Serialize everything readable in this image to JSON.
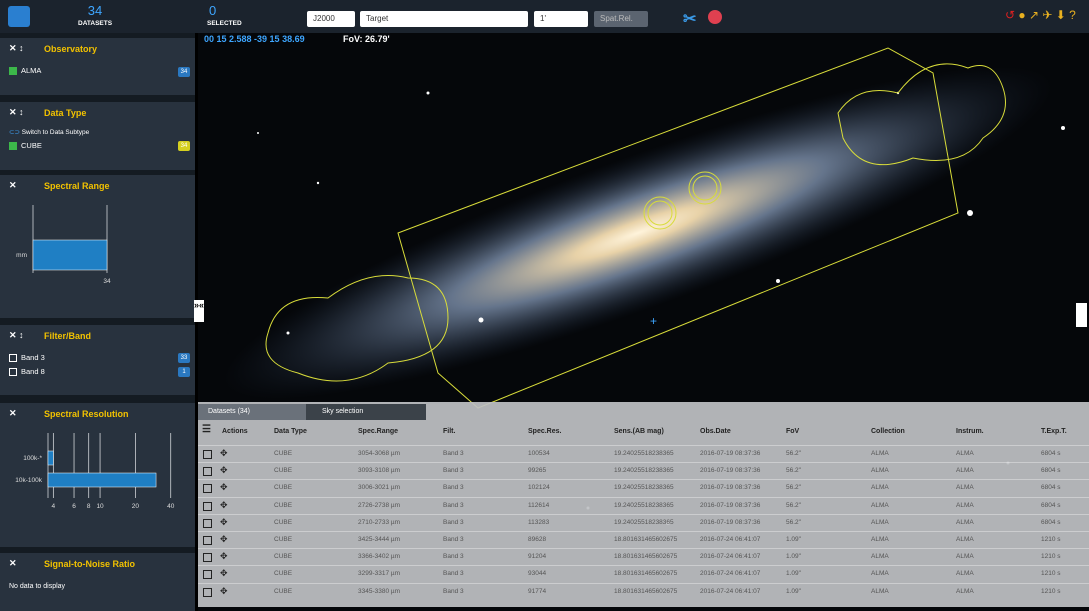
{
  "header": {
    "datasets_count": "34",
    "datasets_label": "DATASETS",
    "selected_count": "0",
    "selected_label": "SELECTED",
    "frame": "J2000",
    "target": "Target",
    "radius": "1'",
    "mode": "Spat.Rel."
  },
  "sky": {
    "coords": "00 15 2.588 -39 15 38.69",
    "fov": "FoV: 26.79'"
  },
  "panels": {
    "observatory": {
      "title": "Observatory",
      "items": [
        {
          "label": "ALMA",
          "count": "34"
        }
      ]
    },
    "data_type": {
      "title": "Data Type",
      "toggle": "Switch to Data Subtype",
      "items": [
        {
          "label": "CUBE",
          "count": "34"
        }
      ]
    },
    "spectral_range": {
      "title": "Spectral Range",
      "chart_data": {
        "type": "bar",
        "categories": [
          "mm"
        ],
        "values": [
          34
        ],
        "xlim": [
          0,
          34
        ],
        "xticks": [
          34
        ],
        "color": "#1f7fc4"
      }
    },
    "filter_band": {
      "title": "Filter/Band",
      "items": [
        {
          "label": "Band 3",
          "count": "33"
        },
        {
          "label": "Band 8",
          "count": "1"
        }
      ]
    },
    "spectral_resolution": {
      "title": "Spectral Resolution",
      "chart_data": {
        "type": "bar",
        "categories": [
          "100k-*",
          "10k-100k"
        ],
        "values": [
          4,
          30
        ],
        "xlim": [
          3.6,
          48
        ],
        "log_x": true,
        "xticks": [
          4,
          6,
          8,
          10,
          20,
          40
        ],
        "color": "#1f7fc4"
      }
    },
    "snr": {
      "title": "Signal-to-Noise Ratio",
      "message": "No data to display"
    }
  },
  "table": {
    "tabs": [
      "Datasets (34)",
      "Sky selection"
    ],
    "columns": [
      "Actions",
      "Data Type",
      "Spec.Range",
      "Filt.",
      "Spec.Res.",
      "Sens.(AB mag)",
      "Obs.Date",
      "FoV",
      "Collection",
      "Instrum.",
      "T.Exp.T."
    ],
    "rows": [
      [
        "CUBE",
        "3054-3068 µm",
        "Band 3",
        "100534",
        "19.24025518238365",
        "2016-07-19 08:37:36",
        "56.2\"",
        "ALMA",
        "ALMA",
        "6804 s"
      ],
      [
        "CUBE",
        "3093-3108 µm",
        "Band 3",
        "99265",
        "19.24025518238365",
        "2016-07-19 08:37:36",
        "56.2\"",
        "ALMA",
        "ALMA",
        "6804 s"
      ],
      [
        "CUBE",
        "3006-3021 µm",
        "Band 3",
        "102124",
        "19.24025518238365",
        "2016-07-19 08:37:36",
        "56.2\"",
        "ALMA",
        "ALMA",
        "6804 s"
      ],
      [
        "CUBE",
        "2726-2738 µm",
        "Band 3",
        "112614",
        "19.24025518238365",
        "2016-07-19 08:37:36",
        "56.2\"",
        "ALMA",
        "ALMA",
        "6804 s"
      ],
      [
        "CUBE",
        "2710-2733 µm",
        "Band 3",
        "113283",
        "19.24025518238365",
        "2016-07-19 08:37:36",
        "56.2\"",
        "ALMA",
        "ALMA",
        "6804 s"
      ],
      [
        "CUBE",
        "3425-3444 µm",
        "Band 3",
        "89628",
        "18.801631465602675",
        "2016-07-24 06:41:07",
        "1.09\"",
        "ALMA",
        "ALMA",
        "1210 s"
      ],
      [
        "CUBE",
        "3366-3402 µm",
        "Band 3",
        "91204",
        "18.801631465602675",
        "2016-07-24 06:41:07",
        "1.09\"",
        "ALMA",
        "ALMA",
        "1210 s"
      ],
      [
        "CUBE",
        "3299-3317 µm",
        "Band 3",
        "93044",
        "18.801631465602675",
        "2016-07-24 06:41:07",
        "1.09\"",
        "ALMA",
        "ALMA",
        "1210 s"
      ],
      [
        "CUBE",
        "3345-3380 µm",
        "Band 3",
        "91774",
        "18.801631465602675",
        "2016-07-24 06:41:07",
        "1.09\"",
        "ALMA",
        "ALMA",
        "1210 s"
      ]
    ]
  }
}
